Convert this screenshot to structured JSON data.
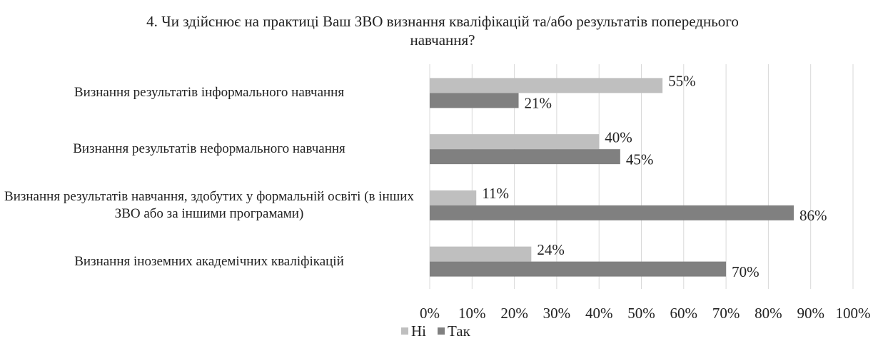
{
  "chart_data": {
    "type": "hbar",
    "title": "4. Чи здійснює на практиці Ваш ЗВО визнання кваліфікацій та/або результатів попереднього навчання?",
    "categories": [
      "Визнання результатів інформального навчання",
      "Визнання результатів неформального навчання",
      "Визнання результатів навчання, здобутих у формальній освіті (в інших ЗВО або за іншими програмами)",
      "Визнання іноземних академічних кваліфікацій"
    ],
    "series": [
      {
        "name": "Ні",
        "color": "#bfbfbf",
        "values": [
          55,
          40,
          11,
          24
        ],
        "value_labels": [
          "55%",
          "40%",
          "11%",
          "24%"
        ]
      },
      {
        "name": "Так",
        "color": "#808080",
        "values": [
          21,
          45,
          86,
          70
        ],
        "value_labels": [
          "21%",
          "45%",
          "86%",
          "70%"
        ]
      }
    ],
    "xlim": [
      0,
      100
    ],
    "xticks": [
      {
        "value": 0,
        "label": "0%"
      },
      {
        "value": 10,
        "label": "10%"
      },
      {
        "value": 20,
        "label": "20%"
      },
      {
        "value": 30,
        "label": "30%"
      },
      {
        "value": 40,
        "label": "40%"
      },
      {
        "value": 50,
        "label": "50%"
      },
      {
        "value": 60,
        "label": "60%"
      },
      {
        "value": 70,
        "label": "70%"
      },
      {
        "value": 80,
        "label": "80%"
      },
      {
        "value": 90,
        "label": "90%"
      },
      {
        "value": 100,
        "label": "100%"
      }
    ],
    "grid": true,
    "legend": "bottom"
  }
}
